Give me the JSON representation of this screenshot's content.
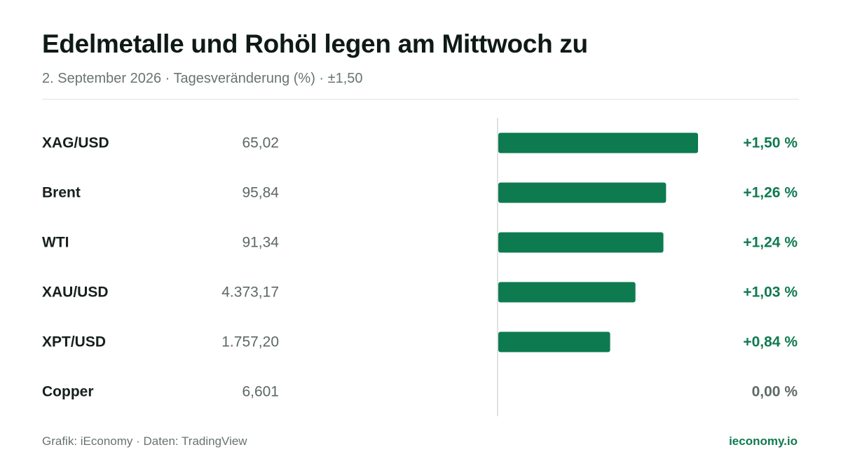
{
  "header": {
    "title": "Edelmetalle und Rohöl legen am Mittwoch zu",
    "subtitle": "2. September 2026 · Tagesveränderung (%) · ±1,50"
  },
  "footer": {
    "source": "Grafik: iEconomy · Daten: TradingView",
    "brand": "ieconomy.io"
  },
  "colors": {
    "positive_bar": "#0e7a50",
    "positive_text": "#0f7a50",
    "neutral_text": "#5f6a66",
    "axis": "#d4d9d7"
  },
  "chart_data": {
    "type": "bar",
    "orientation": "horizontal",
    "title": "Edelmetalle und Rohöl legen am Mittwoch zu",
    "subtitle": "2. September 2026 · Tagesveränderung (%) · ±1,50",
    "xlim": [
      -1.5,
      1.5
    ],
    "grid": false,
    "categories": [
      "XAG/USD",
      "Brent",
      "WTI",
      "XAU/USD",
      "XPT/USD",
      "Copper"
    ],
    "prices": [
      "65,02",
      "95,84",
      "91,34",
      "4.373,17",
      "1.757,20",
      "6,601"
    ],
    "values": [
      1.5,
      1.26,
      1.24,
      1.03,
      0.84,
      0.0
    ],
    "value_labels": [
      "+1,50 %",
      "+1,26 %",
      "+1,24 %",
      "+1,03 %",
      "+0,84 %",
      "0,00 %"
    ]
  }
}
